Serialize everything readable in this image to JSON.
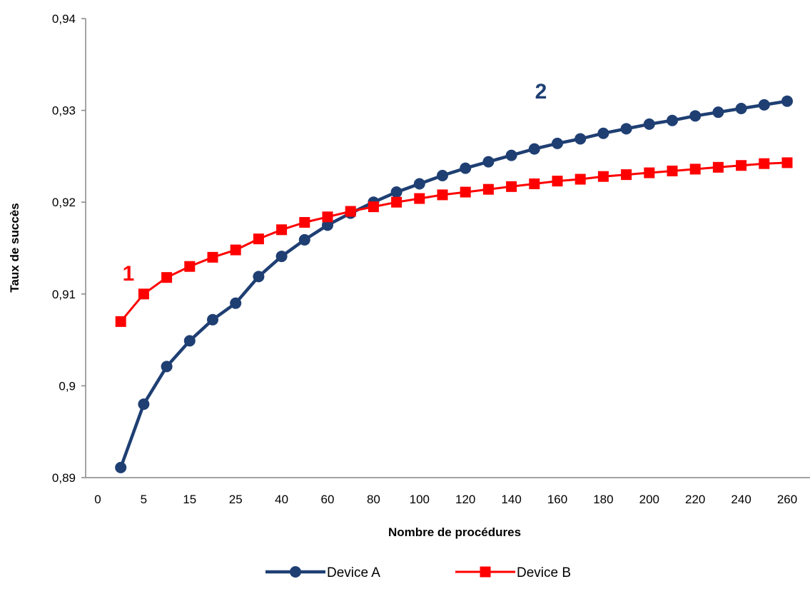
{
  "chart_data": {
    "type": "line",
    "xlabel": "Nombre de procédures",
    "ylabel": "Taux de succès",
    "x": [
      "0",
      "5",
      "10",
      "15",
      "20",
      "25",
      "30",
      "40",
      "50",
      "60",
      "70",
      "80",
      "90",
      "100",
      "110",
      "120",
      "130",
      "140",
      "150",
      "160",
      "170",
      "180",
      "190",
      "200",
      "210",
      "220",
      "230",
      "240",
      "250",
      "260",
      "270"
    ],
    "xtick_labels": [
      "0",
      "5",
      "15",
      "25",
      "40",
      "60",
      "80",
      "100",
      "120",
      "140",
      "160",
      "180",
      "200",
      "220",
      "240",
      "260"
    ],
    "ytick_labels": [
      "0,89",
      "0,9",
      "0,91",
      "0,92",
      "0,93",
      "0,94"
    ],
    "ylim": [
      0.89,
      0.94
    ],
    "series": [
      {
        "name": "Device A",
        "color": "#1F3F73",
        "marker": "circle",
        "values": [
          null,
          0.8911,
          0.898,
          0.9021,
          0.9049,
          0.9072,
          0.909,
          0.9119,
          0.9141,
          0.9159,
          0.9175,
          0.9188,
          0.92,
          0.9211,
          0.922,
          0.9229,
          0.9237,
          0.9244,
          0.9251,
          0.9258,
          0.9264,
          0.9269,
          0.9275,
          0.928,
          0.9285,
          0.9289,
          0.9294,
          0.9298,
          0.9302,
          0.9306,
          0.931
        ]
      },
      {
        "name": "Device B",
        "color": "#FF0000",
        "marker": "square",
        "values": [
          null,
          0.907,
          0.91,
          0.9118,
          0.913,
          0.914,
          0.9148,
          0.916,
          0.917,
          0.9178,
          0.9184,
          0.919,
          0.9195,
          0.92,
          0.9204,
          0.9208,
          0.9211,
          0.9214,
          0.9217,
          0.922,
          0.9223,
          0.9225,
          0.9228,
          0.923,
          0.9232,
          0.9234,
          0.9236,
          0.9238,
          0.924,
          0.9242,
          0.9243
        ]
      }
    ],
    "annotations": [
      {
        "text": "1",
        "color": "#FF0000",
        "series": "Device B"
      },
      {
        "text": "2",
        "color": "#1F3F73",
        "series": "Device A"
      }
    ],
    "grid": false,
    "legend_position": "bottom"
  }
}
